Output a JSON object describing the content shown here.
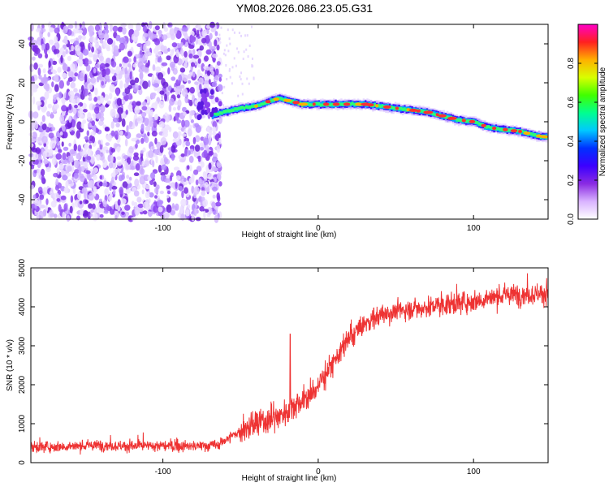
{
  "figure": {
    "title": "YM08.2026.086.23.05.G31"
  },
  "chart_data": [
    {
      "type": "heatmap",
      "name": "spectrogram",
      "xlabel": "Height of straight line (km)",
      "ylabel": "Frequency (Hz)",
      "xlim": [
        -185,
        148
      ],
      "ylim": [
        -50,
        50
      ],
      "xticks": [
        -100,
        0,
        100
      ],
      "yticks": [
        -40,
        -20,
        0,
        20,
        40
      ],
      "noise_region_x": [
        -185,
        -65
      ],
      "signal_track": {
        "x": [
          -75,
          -70,
          -60,
          -50,
          -40,
          -30,
          -25,
          -20,
          -10,
          0,
          10,
          20,
          30,
          40,
          50,
          60,
          70,
          80,
          90,
          100,
          110,
          120,
          130,
          140,
          148
        ],
        "freq": [
          4,
          3,
          5,
          7,
          8,
          11,
          12,
          11,
          9,
          9,
          9,
          9,
          9,
          8,
          7,
          6,
          5,
          3,
          1,
          0,
          -3,
          -4,
          -5,
          -7,
          -8
        ]
      },
      "colorbar": {
        "label": "Normalized spectral amplitude",
        "range": [
          0,
          1
        ],
        "ticks": [
          0.0,
          0.2,
          0.4,
          0.6,
          0.8
        ],
        "tick_labels": [
          "0.0",
          "0.2",
          "0.4",
          "0.6",
          "0.8"
        ],
        "colors": [
          "#ffffff",
          "#d9b3ff",
          "#8a2be2",
          "#3c00ff",
          "#0030ff",
          "#00c8ff",
          "#00ff90",
          "#40ff00",
          "#d8ff00",
          "#ffb000",
          "#ff2020",
          "#ff00c8"
        ]
      }
    },
    {
      "type": "line",
      "name": "snr",
      "xlabel": "Height of straight line (km)",
      "ylabel": "SNR (10 * v/v)",
      "xlim": [
        -185,
        148
      ],
      "ylim": [
        0,
        5000
      ],
      "xticks": [
        -100,
        0,
        100
      ],
      "yticks": [
        0,
        1000,
        2000,
        3000,
        4000,
        5000
      ],
      "color": "#ee3333",
      "series": {
        "x": [
          -185,
          -160,
          -140,
          -120,
          -100,
          -80,
          -65,
          -55,
          -45,
          -35,
          -25,
          -15,
          -5,
          5,
          15,
          25,
          35,
          45,
          60,
          80,
          100,
          120,
          148
        ],
        "y": [
          400,
          420,
          450,
          420,
          430,
          420,
          450,
          700,
          900,
          1050,
          1200,
          1500,
          1700,
          2300,
          2900,
          3400,
          3700,
          3850,
          3950,
          4050,
          4150,
          4300,
          4350
        ]
      },
      "spike": {
        "x": -18,
        "y": 3300
      }
    }
  ]
}
